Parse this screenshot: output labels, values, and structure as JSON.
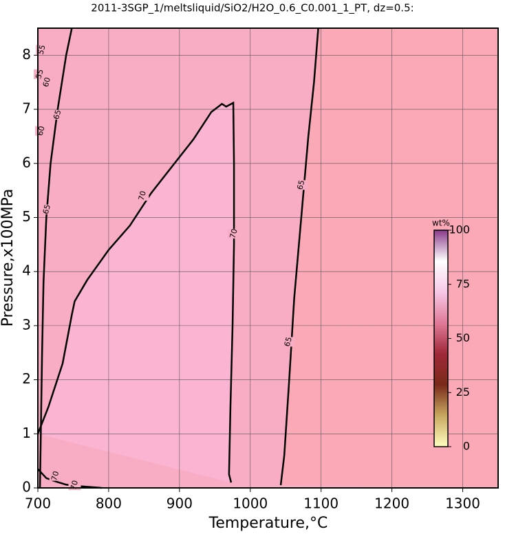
{
  "chart_data": {
    "type": "contour",
    "title": "2011-3SGP_1/meltsliquid/SiO2/H2O_0.6_C0.001_1_PT, dz=0.5:",
    "x_label": "Temperature,°C",
    "y_label": "Pressure,x100MPa",
    "xlim": [
      700,
      1350
    ],
    "xticks": [
      700,
      800,
      900,
      1000,
      1100,
      1200,
      1300
    ],
    "ylim": [
      0,
      8.5
    ],
    "yticks": [
      0,
      1,
      2,
      3,
      4,
      5,
      6,
      7,
      8
    ],
    "grid": true,
    "contours": [
      {
        "x": [
          700,
          715,
          735,
          748,
          752,
          770,
          800,
          830,
          860,
          890,
          920,
          945,
          955,
          960,
          966,
          976,
          977,
          977,
          975,
          972,
          970,
          973
        ],
        "y": [
          1.0,
          1.5,
          2.3,
          3.2,
          3.45,
          3.85,
          4.4,
          4.85,
          5.45,
          5.95,
          6.45,
          6.95,
          7.05,
          7.1,
          7.05,
          7.12,
          6.0,
          4.5,
          3.0,
          1.5,
          0.25,
          0.1
        ]
      },
      {
        "x": [
          1043,
          1048,
          1055,
          1062,
          1072,
          1082,
          1090,
          1096
        ],
        "y": [
          0.05,
          0.6,
          2.0,
          3.5,
          5.0,
          6.5,
          7.5,
          8.5
        ]
      },
      {
        "x": [
          703,
          706,
          708,
          712,
          718,
          728,
          740,
          748
        ],
        "y": [
          0.0,
          2.5,
          3.8,
          5.0,
          6.0,
          7.0,
          8.0,
          8.5
        ]
      },
      {
        "x": [
          700,
          712,
          725,
          740,
          760,
          790
        ],
        "y": [
          0.35,
          0.18,
          0.12,
          0.06,
          0.03,
          0.0
        ]
      }
    ],
    "contour_labels": [
      {
        "level": 55,
        "x": 706,
        "y": 8.1
      },
      {
        "level": 55,
        "x": 703,
        "y": 7.65
      },
      {
        "level": 60,
        "x": 713,
        "y": 7.5
      },
      {
        "level": 65,
        "x": 728,
        "y": 6.9
      },
      {
        "level": 60,
        "x": 705,
        "y": 6.6
      },
      {
        "level": 65,
        "x": 713,
        "y": 5.15
      },
      {
        "level": 70,
        "x": 848,
        "y": 5.4
      },
      {
        "level": 70,
        "x": 977,
        "y": 4.7
      },
      {
        "level": 65,
        "x": 1072,
        "y": 5.6
      },
      {
        "level": 65,
        "x": 1054,
        "y": 2.7
      },
      {
        "level": 70,
        "x": 725,
        "y": 0.22
      },
      {
        "level": 70,
        "x": 752,
        "y": 0.05
      }
    ],
    "colorbar": {
      "label": "wt%",
      "lim": [
        0,
        100
      ],
      "ticks": [
        0,
        25,
        50,
        75,
        100
      ],
      "colors": [
        "#ffffc0",
        "#c8a860",
        "#7a2a1a",
        "#a02838",
        "#e07a98",
        "#f6c8e6",
        "#ffffff",
        "#8a3a8a"
      ]
    }
  }
}
